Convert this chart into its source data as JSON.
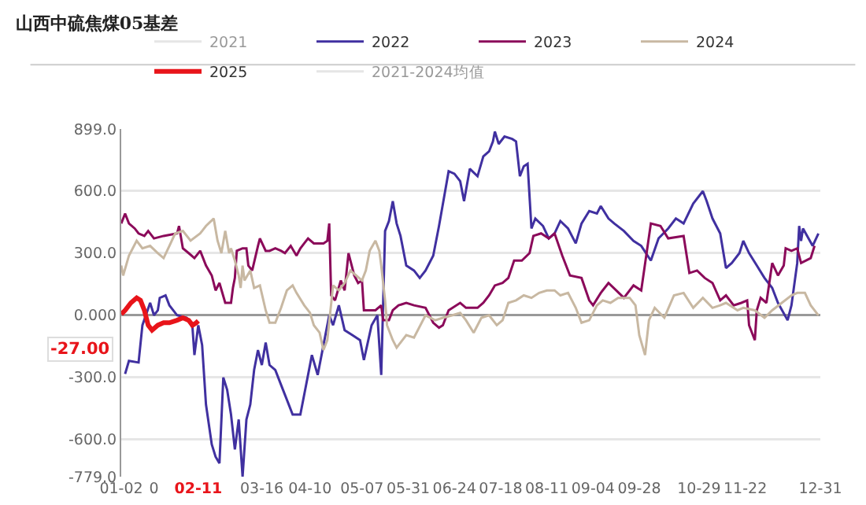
{
  "chart_data": {
    "type": "line",
    "title": "山西中硫焦煤05基差",
    "legend": "top",
    "grid": "y",
    "xlim": [
      "--01-02",
      "--12-31"
    ],
    "xticks": [
      {
        "value": "--01-02",
        "label": "01-02"
      },
      {
        "value": "--01-19",
        "label": "0"
      },
      {
        "value": "--02-11",
        "label": "02-11"
      },
      {
        "value": "--03-16",
        "label": "03-16"
      },
      {
        "value": "--04-10",
        "label": "04-10"
      },
      {
        "value": "--05-07",
        "label": "05-07"
      },
      {
        "value": "--05-31",
        "label": "05-31"
      },
      {
        "value": "--06-24",
        "label": "06-24"
      },
      {
        "value": "--07-18",
        "label": "07-18"
      },
      {
        "value": "--08-11",
        "label": "08-11"
      },
      {
        "value": "--09-04",
        "label": "09-04"
      },
      {
        "value": "--09-28",
        "label": "09-28"
      },
      {
        "value": "--10-29",
        "label": "10-29"
      },
      {
        "value": "--11-22",
        "label": "11-22"
      },
      {
        "value": "--12-31",
        "label": "12-31"
      }
    ],
    "ylim": [
      -779,
      899
    ],
    "yticks": [
      {
        "value": 899,
        "label": "899.0"
      },
      {
        "value": 600,
        "label": "600.0"
      },
      {
        "value": 300,
        "label": "300.0"
      },
      {
        "value": 0,
        "label": "0.000"
      },
      {
        "value": -300,
        "label": "-300.0"
      },
      {
        "value": -600,
        "label": "-600.0"
      },
      {
        "value": -779,
        "label": "-779.0"
      }
    ],
    "annotations": [
      "-27.00"
    ],
    "series": [
      {
        "name": "2021",
        "color": "#cccccc"
      },
      {
        "name": "2022",
        "color": "#4030a0",
        "x": [
          "--01-04",
          "--01-06",
          "--01-11",
          "--01-13",
          "--01-17",
          "--01-19",
          "--01-21",
          "--01-22",
          "--01-25",
          "--01-27",
          "--01-31",
          "--02-05",
          "--02-08",
          "--02-09",
          "--02-11",
          "--02-13",
          "--02-15",
          "--02-18",
          "--02-20",
          "--02-22",
          "--02-24",
          "--02-26",
          "--02-28",
          "--03-02",
          "--03-04",
          "--03-06",
          "--03-08",
          "--03-10",
          "--03-12",
          "--03-14",
          "--03-16",
          "--03-18",
          "--03-20",
          "--03-23",
          "--03-27",
          "--03-30",
          "--04-01",
          "--04-05",
          "--04-08",
          "--04-11",
          "--04-14",
          "--04-18",
          "--04-20",
          "--04-22",
          "--04-25",
          "--04-28",
          "--05-02",
          "--05-06",
          "--05-08",
          "--05-10",
          "--05-12",
          "--05-15",
          "--05-17",
          "--05-19",
          "--05-21",
          "--05-23",
          "--05-25",
          "--05-27",
          "--05-30",
          "--06-03",
          "--06-06",
          "--06-09",
          "--06-13",
          "--06-16",
          "--06-21",
          "--06-24",
          "--06-27",
          "--06-29",
          "--07-02",
          "--07-06",
          "--07-09",
          "--07-12",
          "--07-14",
          "--07-15",
          "--07-17",
          "--07-20",
          "--07-24",
          "--07-26",
          "--07-28",
          "--07-30",
          "--08-01",
          "--08-03",
          "--08-05",
          "--08-09",
          "--08-12",
          "--08-15",
          "--08-18",
          "--08-22",
          "--08-26",
          "--08-29",
          "--09-02",
          "--09-06",
          "--09-08",
          "--09-12",
          "--09-15",
          "--09-20",
          "--09-25",
          "--09-29",
          "--10-04",
          "--10-08",
          "--10-13",
          "--10-17",
          "--10-21",
          "--10-26",
          "--10-31",
          "--11-02",
          "--11-05",
          "--11-09",
          "--11-12",
          "--11-15",
          "--11-19",
          "--11-21",
          "--11-24",
          "--11-28",
          "--12-02",
          "--12-06",
          "--12-09",
          "--12-14",
          "--12-16",
          "--12-19",
          "--12-20",
          "--12-21",
          "--12-22",
          "--12-27",
          "--12-30"
        ],
        "values": [
          -283,
          -220,
          -228,
          -48,
          60,
          0,
          24,
          84,
          96,
          48,
          0,
          -12,
          -60,
          -192,
          -48,
          -144,
          -431,
          -623,
          -683,
          -714,
          -300,
          -360,
          -479,
          -647,
          -503,
          -779,
          -503,
          -431,
          -264,
          -168,
          -240,
          -132,
          -240,
          -264,
          -360,
          -431,
          -479,
          -479,
          -336,
          -192,
          -288,
          -96,
          0,
          -48,
          48,
          -72,
          -96,
          -120,
          -216,
          -132,
          -48,
          0,
          -288,
          407,
          455,
          551,
          443,
          383,
          240,
          216,
          180,
          216,
          288,
          431,
          695,
          683,
          647,
          551,
          707,
          671,
          767,
          791,
          839,
          887,
          827,
          863,
          851,
          839,
          671,
          719,
          731,
          419,
          467,
          431,
          371,
          395,
          455,
          419,
          347,
          443,
          503,
          491,
          527,
          467,
          443,
          407,
          359,
          335,
          264,
          371,
          419,
          467,
          443,
          539,
          599,
          551,
          467,
          395,
          228,
          252,
          300,
          359,
          300,
          240,
          180,
          132,
          60,
          -24,
          48,
          252,
          431,
          359,
          419,
          335,
          395
        ]
      },
      {
        "name": "2023",
        "color": "#8b0a5a",
        "x": [
          "--01-02",
          "--01-04",
          "--01-06",
          "--01-09",
          "--01-11",
          "--01-14",
          "--01-16",
          "--01-19",
          "--01-24",
          "--01-31",
          "--02-01",
          "--02-03",
          "--02-06",
          "--02-09",
          "--02-12",
          "--02-15",
          "--02-18",
          "--02-20",
          "--02-22",
          "--02-25",
          "--02-28",
          "--03-01",
          "--03-02",
          "--03-03",
          "--03-06",
          "--03-08",
          "--03-09",
          "--03-11",
          "--03-14",
          "--03-15",
          "--03-18",
          "--03-20",
          "--03-23",
          "--03-26",
          "--03-28",
          "--03-31",
          "--04-03",
          "--04-05",
          "--04-07",
          "--04-09",
          "--04-12",
          "--04-17",
          "--04-19",
          "--04-20",
          "--04-21",
          "--04-23",
          "--04-26",
          "--04-28",
          "--04-30",
          "--05-03",
          "--05-05",
          "--05-07",
          "--05-08",
          "--05-11",
          "--05-14",
          "--05-17",
          "--05-18",
          "--05-21",
          "--05-23",
          "--05-26",
          "--05-30",
          "--06-03",
          "--06-09",
          "--06-13",
          "--06-16",
          "--06-18",
          "--06-21",
          "--06-27",
          "--06-30",
          "--07-06",
          "--07-09",
          "--07-12",
          "--07-15",
          "--07-19",
          "--07-22",
          "--07-25",
          "--07-29",
          "--08-02",
          "--08-04",
          "--08-08",
          "--08-12",
          "--08-15",
          "--08-19",
          "--08-23",
          "--08-29",
          "--09-02",
          "--09-04",
          "--09-08",
          "--09-12",
          "--09-16",
          "--09-20",
          "--09-25",
          "--09-29",
          "--10-04",
          "--10-09",
          "--10-13",
          "--10-21",
          "--10-24",
          "--10-28",
          "--11-01",
          "--11-05",
          "--11-09",
          "--11-12",
          "--11-16",
          "--11-20",
          "--11-23",
          "--11-24",
          "--11-27",
          "--11-28",
          "--11-30",
          "--12-03",
          "--12-06",
          "--12-09",
          "--12-12",
          "--12-13",
          "--12-16",
          "--12-19",
          "--12-21",
          "--12-26",
          "--12-28"
        ],
        "values": [
          443,
          491,
          443,
          419,
          395,
          383,
          407,
          371,
          383,
          395,
          431,
          323,
          300,
          276,
          311,
          240,
          192,
          120,
          156,
          60,
          60,
          132,
          180,
          311,
          323,
          323,
          240,
          216,
          335,
          371,
          311,
          311,
          323,
          311,
          300,
          335,
          288,
          323,
          347,
          371,
          347,
          347,
          359,
          443,
          96,
          72,
          168,
          120,
          300,
          192,
          156,
          168,
          24,
          24,
          24,
          48,
          -24,
          -24,
          24,
          48,
          60,
          48,
          36,
          -36,
          -60,
          -48,
          24,
          60,
          36,
          36,
          60,
          96,
          144,
          156,
          180,
          264,
          264,
          300,
          383,
          395,
          371,
          395,
          288,
          192,
          180,
          72,
          48,
          108,
          156,
          120,
          84,
          144,
          120,
          443,
          431,
          371,
          383,
          204,
          216,
          180,
          156,
          72,
          96,
          48,
          60,
          72,
          -48,
          -120,
          24,
          84,
          60,
          252,
          192,
          240,
          323,
          311,
          323,
          252,
          276,
          335
        ]
      },
      {
        "name": "2024",
        "color": "#c8b8a2",
        "x": [
          "--01-02",
          "--01-03",
          "--01-06",
          "--01-10",
          "--01-13",
          "--01-17",
          "--01-21",
          "--01-24",
          "--01-27",
          "--01-30",
          "--02-03",
          "--02-07",
          "--02-12",
          "--02-15",
          "--02-19",
          "--02-21",
          "--02-23",
          "--02-25",
          "--02-27",
          "--02-28",
          "--03-02",
          "--03-04",
          "--03-05",
          "--03-06",
          "--03-07",
          "--03-10",
          "--03-12",
          "--03-15",
          "--03-18",
          "--03-20",
          "--03-23",
          "--03-26",
          "--03-29",
          "--04-01",
          "--04-03",
          "--04-07",
          "--04-10",
          "--04-12",
          "--04-15",
          "--04-17",
          "--04-19",
          "--04-22",
          "--04-25",
          "--04-28",
          "--05-01",
          "--05-04",
          "--05-07",
          "--05-09",
          "--05-11",
          "--05-14",
          "--05-16",
          "--05-17",
          "--05-19",
          "--05-20",
          "--05-23",
          "--05-25",
          "--05-28",
          "--05-30",
          "--06-03",
          "--06-09",
          "--06-14",
          "--06-18",
          "--06-23",
          "--06-27",
          "--06-30",
          "--07-04",
          "--07-08",
          "--07-12",
          "--07-16",
          "--07-19",
          "--07-22",
          "--07-26",
          "--07-30",
          "--08-03",
          "--08-07",
          "--08-11",
          "--08-15",
          "--08-18",
          "--08-22",
          "--08-26",
          "--08-29",
          "--09-02",
          "--09-06",
          "--09-09",
          "--09-13",
          "--09-17",
          "--09-23",
          "--09-26",
          "--09-28",
          "--10-01",
          "--10-03",
          "--10-06",
          "--10-11",
          "--10-16",
          "--10-21",
          "--10-26",
          "--10-31",
          "--11-05",
          "--11-09",
          "--11-12",
          "--11-18",
          "--11-21",
          "--11-27",
          "--12-02",
          "--12-06",
          "--12-11",
          "--12-16",
          "--12-19",
          "--12-23",
          "--12-26",
          "--12-30"
        ],
        "values": [
          240,
          192,
          288,
          360,
          323,
          335,
          300,
          276,
          335,
          395,
          407,
          360,
          395,
          431,
          467,
          360,
          300,
          407,
          300,
          323,
          264,
          192,
          132,
          240,
          168,
          216,
          132,
          144,
          24,
          -36,
          -36,
          36,
          120,
          144,
          108,
          48,
          12,
          -48,
          -84,
          -168,
          -120,
          144,
          120,
          156,
          216,
          192,
          168,
          216,
          311,
          360,
          311,
          240,
          72,
          -48,
          -120,
          -156,
          -120,
          -96,
          -108,
          0,
          -24,
          -12,
          0,
          12,
          -24,
          -84,
          -12,
          0,
          -48,
          -24,
          60,
          72,
          96,
          84,
          108,
          120,
          120,
          96,
          108,
          36,
          -36,
          -24,
          48,
          72,
          60,
          84,
          84,
          48,
          -96,
          -192,
          -24,
          36,
          -12,
          96,
          108,
          36,
          84,
          36,
          48,
          60,
          24,
          36,
          24,
          -12,
          24,
          60,
          96,
          108,
          108,
          48,
          0
        ]
      },
      {
        "name": "2025",
        "color": "#e8141a",
        "x": [
          "--01-02",
          "--01-04",
          "--01-07",
          "--01-10",
          "--01-12",
          "--01-14",
          "--01-16",
          "--01-18",
          "--01-21",
          "--01-24",
          "--01-27",
          "--01-31",
          "--02-03",
          "--02-06",
          "--02-08",
          "--02-10",
          "--02-11"
        ],
        "values": [
          5,
          24,
          60,
          84,
          72,
          24,
          -48,
          -72,
          -48,
          -36,
          -36,
          -24,
          -12,
          -24,
          -48,
          -36,
          -27
        ]
      },
      {
        "name": "2021-2024均值",
        "color": "#cccccc"
      }
    ]
  }
}
